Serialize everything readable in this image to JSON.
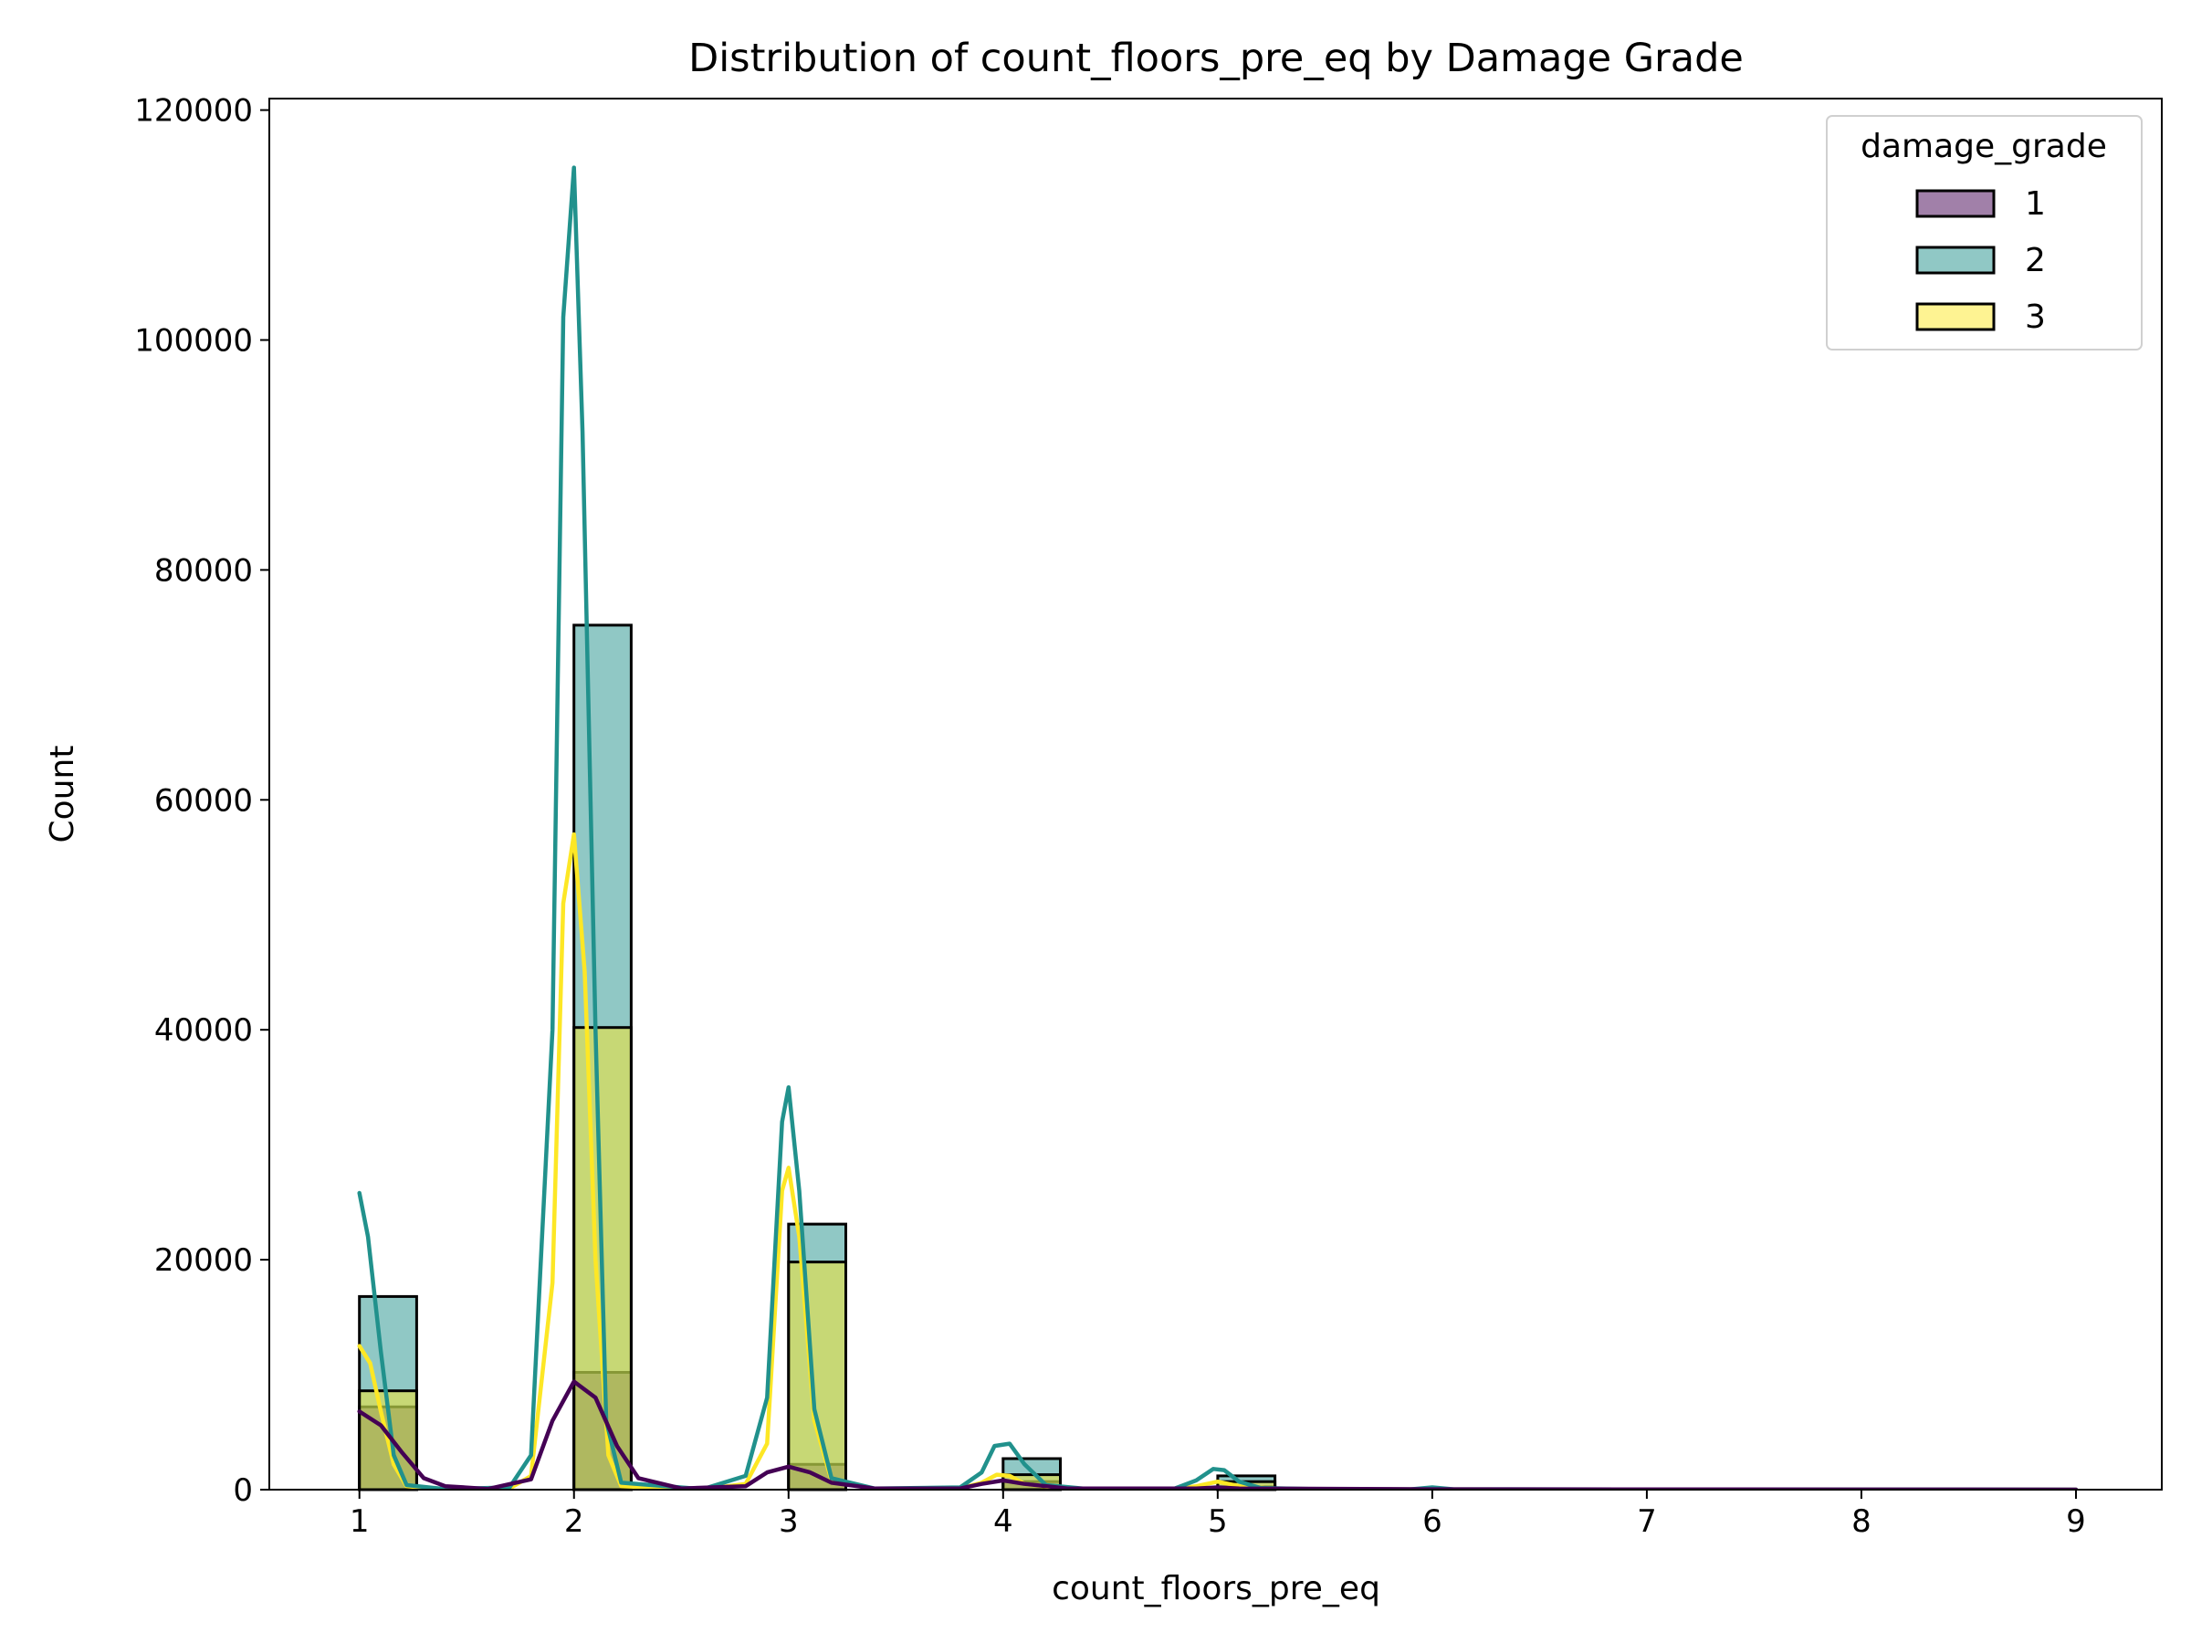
{
  "chart_data": {
    "type": "bar",
    "title": "Distribution of count_floors_pre_eq by Damage Grade",
    "xlabel": "count_floors_pre_eq",
    "ylabel": "Count",
    "xlim": [
      0.58,
      9.4
    ],
    "ylim": [
      0,
      121000
    ],
    "x_ticks": [
      1,
      2,
      3,
      4,
      5,
      6,
      7,
      8,
      9
    ],
    "y_ticks": [
      0,
      20000,
      40000,
      60000,
      80000,
      100000,
      120000
    ],
    "bin_width": 0.2667,
    "grid": false,
    "legend": {
      "title": "damage_grade",
      "placement": "top-right"
    },
    "series": [
      {
        "name": "1",
        "color": "#440154",
        "bins": [
          [
            1,
            7200
          ],
          [
            2,
            10200
          ],
          [
            3,
            2200
          ],
          [
            4,
            700
          ],
          [
            5,
            250
          ]
        ],
        "kde": [
          [
            1.0,
            6800
          ],
          [
            1.1,
            5600
          ],
          [
            1.2,
            3200
          ],
          [
            1.3,
            1000
          ],
          [
            1.4,
            300
          ],
          [
            1.6,
            60
          ],
          [
            1.8,
            900
          ],
          [
            1.9,
            6000
          ],
          [
            2.0,
            9400
          ],
          [
            2.1,
            8000
          ],
          [
            2.2,
            3800
          ],
          [
            2.3,
            1000
          ],
          [
            2.5,
            100
          ],
          [
            2.8,
            300
          ],
          [
            2.9,
            1500
          ],
          [
            3.0,
            2000
          ],
          [
            3.1,
            1500
          ],
          [
            3.2,
            600
          ],
          [
            3.4,
            100
          ],
          [
            3.8,
            100
          ],
          [
            3.9,
            500
          ],
          [
            4.0,
            800
          ],
          [
            4.1,
            500
          ],
          [
            4.3,
            100
          ],
          [
            4.9,
            100
          ],
          [
            5.0,
            200
          ],
          [
            5.1,
            100
          ],
          [
            6.0,
            30
          ],
          [
            9.0,
            0
          ]
        ]
      },
      {
        "name": "2",
        "color": "#21918c",
        "bins": [
          [
            1,
            16800
          ],
          [
            2,
            75200
          ],
          [
            3,
            23100
          ],
          [
            4,
            2700
          ],
          [
            5,
            1200
          ]
        ],
        "kde": [
          [
            1.0,
            25800
          ],
          [
            1.04,
            22000
          ],
          [
            1.1,
            12000
          ],
          [
            1.16,
            3000
          ],
          [
            1.22,
            400
          ],
          [
            1.4,
            50
          ],
          [
            1.7,
            200
          ],
          [
            1.8,
            3000
          ],
          [
            1.9,
            40000
          ],
          [
            1.95,
            102000
          ],
          [
            2.0,
            115000
          ],
          [
            2.04,
            92000
          ],
          [
            2.1,
            40000
          ],
          [
            2.15,
            6000
          ],
          [
            2.22,
            600
          ],
          [
            2.6,
            50
          ],
          [
            2.8,
            1200
          ],
          [
            2.9,
            8000
          ],
          [
            2.97,
            32000
          ],
          [
            3.0,
            35000
          ],
          [
            3.05,
            26000
          ],
          [
            3.12,
            7000
          ],
          [
            3.2,
            1000
          ],
          [
            3.4,
            100
          ],
          [
            3.8,
            200
          ],
          [
            3.9,
            1500
          ],
          [
            3.96,
            3800
          ],
          [
            4.03,
            4000
          ],
          [
            4.1,
            2200
          ],
          [
            4.2,
            400
          ],
          [
            4.4,
            50
          ],
          [
            4.8,
            100
          ],
          [
            4.9,
            800
          ],
          [
            4.98,
            1800
          ],
          [
            5.03,
            1700
          ],
          [
            5.1,
            700
          ],
          [
            5.2,
            150
          ],
          [
            5.5,
            30
          ],
          [
            5.9,
            30
          ],
          [
            6.0,
            200
          ],
          [
            6.1,
            30
          ],
          [
            9.0,
            0
          ]
        ]
      },
      {
        "name": "3",
        "color": "#fde725",
        "bins": [
          [
            1,
            8600
          ],
          [
            2,
            40200
          ],
          [
            3,
            19800
          ],
          [
            4,
            1300
          ],
          [
            5,
            700
          ]
        ],
        "kde": [
          [
            1.0,
            12500
          ],
          [
            1.05,
            11000
          ],
          [
            1.1,
            6800
          ],
          [
            1.16,
            2200
          ],
          [
            1.22,
            300
          ],
          [
            1.4,
            30
          ],
          [
            1.7,
            100
          ],
          [
            1.8,
            1200
          ],
          [
            1.9,
            18000
          ],
          [
            1.95,
            51000
          ],
          [
            2.0,
            57000
          ],
          [
            2.05,
            45000
          ],
          [
            2.1,
            20000
          ],
          [
            2.16,
            3000
          ],
          [
            2.22,
            300
          ],
          [
            2.6,
            30
          ],
          [
            2.8,
            500
          ],
          [
            2.9,
            4000
          ],
          [
            2.97,
            26000
          ],
          [
            3.0,
            28000
          ],
          [
            3.05,
            22000
          ],
          [
            3.12,
            6000
          ],
          [
            3.2,
            800
          ],
          [
            3.4,
            60
          ],
          [
            3.8,
            100
          ],
          [
            3.9,
            600
          ],
          [
            3.97,
            1300
          ],
          [
            4.03,
            1200
          ],
          [
            4.1,
            500
          ],
          [
            4.3,
            50
          ],
          [
            4.8,
            50
          ],
          [
            4.9,
            300
          ],
          [
            5.0,
            700
          ],
          [
            5.1,
            300
          ],
          [
            5.3,
            30
          ],
          [
            9.0,
            0
          ]
        ]
      }
    ]
  }
}
